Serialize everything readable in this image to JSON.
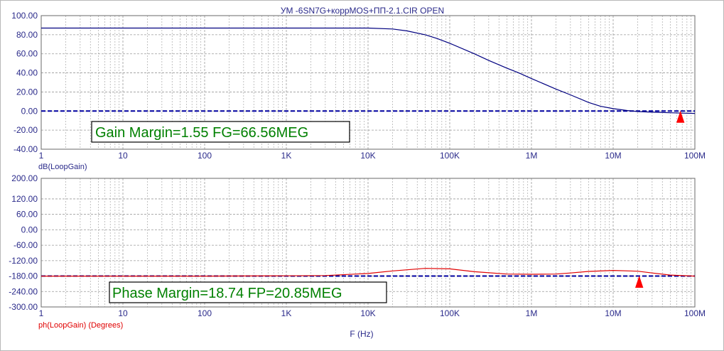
{
  "title": "УМ -6SN7G+коррMOS+ПП-2.1.CIR OPEN",
  "xlabel": "F (Hz)",
  "colors": {
    "gain_curve": "#000080",
    "phase_curve": "#e00000",
    "zero_line": "#0000a0",
    "marker": "#ff0000",
    "annotation_text": "#008000",
    "grid": "#9a9a9a",
    "axis_text": "#2a2a8a",
    "phase_label": "#e00000"
  },
  "chart_data": [
    {
      "type": "line",
      "ylabel": "dB(LoopGain)",
      "xscale": "log",
      "xlim": [
        1,
        100000000
      ],
      "ylim": [
        -40,
        100
      ],
      "grid": true,
      "x_tick_labels": [
        "1",
        "10",
        "100",
        "1K",
        "10K",
        "100K",
        "1M",
        "10M",
        "100M"
      ],
      "y_tick_labels": [
        "100.00",
        "80.00",
        "60.00",
        "40.00",
        "20.00",
        "0.00",
        "-20.00",
        "-40.00"
      ],
      "reference_line": 0,
      "annotation": "Gain Margin=1.55 FG=66.56MEG",
      "marker_x": 66560000,
      "series": [
        {
          "x": [
            1,
            10,
            100,
            1000,
            10000,
            20000,
            30000,
            50000,
            70000,
            100000,
            200000,
            300000,
            500000,
            700000,
            1000000,
            2000000,
            3000000,
            5000000,
            7000000,
            10000000,
            15000000,
            20000000,
            30000000,
            50000000,
            70000000,
            100000000
          ],
          "y": [
            87,
            87,
            87,
            87,
            87,
            86,
            84,
            80,
            76,
            71,
            60,
            53,
            45,
            40,
            34,
            23,
            17,
            9,
            5,
            2.5,
            0.5,
            -0.5,
            -1.2,
            -1.8,
            -2.2,
            -2.5
          ]
        }
      ]
    },
    {
      "type": "line",
      "ylabel": "ph(LoopGain) (Degrees)",
      "xscale": "log",
      "xlim": [
        1,
        100000000
      ],
      "ylim": [
        -300,
        200
      ],
      "grid": true,
      "x_tick_labels": [
        "1",
        "10",
        "100",
        "1K",
        "10K",
        "100K",
        "1M",
        "10M",
        "100M"
      ],
      "y_tick_labels": [
        "200.00",
        "120.00",
        "60.00",
        "0.00",
        "-60.00",
        "-120.00",
        "-180.00",
        "-240.00",
        "-300.00"
      ],
      "reference_line": -180,
      "annotation": "Phase Margin=18.74 FP=20.85MEG",
      "marker_x": 20850000,
      "series": [
        {
          "x": [
            1,
            10,
            100,
            1000,
            3000,
            10000,
            20000,
            50000,
            100000,
            200000,
            500000,
            1000000,
            2000000,
            3000000,
            5000000,
            10000000,
            20000000,
            30000000,
            50000000,
            100000000
          ],
          "y": [
            -180,
            -180,
            -180,
            -179,
            -178,
            -170,
            -160,
            -150,
            -152,
            -163,
            -172,
            -173,
            -172,
            -168,
            -162,
            -158,
            -161,
            -168,
            -176,
            -180
          ]
        }
      ]
    }
  ]
}
